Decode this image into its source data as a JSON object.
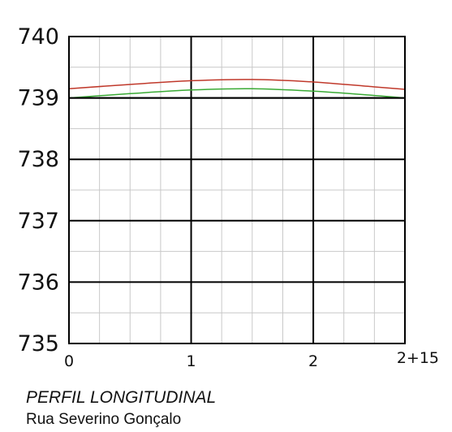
{
  "chart_data": {
    "type": "line",
    "title": "PERFIL LONGITUDINAL",
    "subtitle": "Rua Severino Gonçalo",
    "xlabel": "",
    "ylabel": "",
    "xlim": [
      0,
      2.75
    ],
    "ylim": [
      735,
      740
    ],
    "x_ticks": [
      {
        "value": 0,
        "label": "0"
      },
      {
        "value": 1,
        "label": "1"
      },
      {
        "value": 2,
        "label": "2"
      },
      {
        "value": 2.75,
        "label": "2+15"
      }
    ],
    "y_ticks": [
      {
        "value": 740,
        "label": "740"
      },
      {
        "value": 739,
        "label": "739"
      },
      {
        "value": 738,
        "label": "738"
      },
      {
        "value": 737,
        "label": "737"
      },
      {
        "value": 736,
        "label": "736"
      },
      {
        "value": 735,
        "label": "735"
      }
    ],
    "grid": true,
    "series": [
      {
        "color": "#c0392b",
        "x": [
          0,
          0.5,
          1.0,
          1.5,
          2.0,
          2.5,
          2.75
        ],
        "y": [
          739.15,
          739.22,
          739.28,
          739.3,
          739.26,
          739.18,
          739.14
        ]
      },
      {
        "color": "#3aaa35",
        "x": [
          0,
          0.5,
          1.0,
          1.5,
          2.0,
          2.5,
          2.75
        ],
        "y": [
          739.0,
          739.07,
          739.13,
          739.15,
          739.11,
          739.04,
          739.0
        ]
      },
      {
        "color": "#000000",
        "x": [
          0,
          2.75
        ],
        "y": [
          739.0,
          739.0
        ]
      }
    ]
  },
  "caption": {
    "title": "PERFIL LONGITUDINAL",
    "subtitle": "Rua Severino Gonçalo"
  }
}
